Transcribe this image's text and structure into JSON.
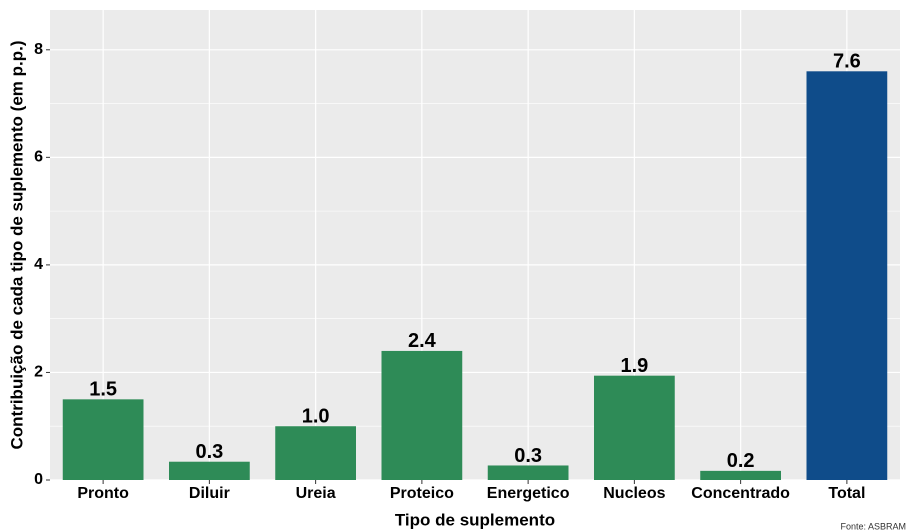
{
  "chart_data": {
    "type": "bar",
    "x_label": "Tipo de suplemento",
    "y_label": "Contribuição de cada tipo de suplemento (em p.p.)",
    "caption": "Fonte: ASBRAM",
    "categories": [
      "Pronto",
      "Diluir",
      "Ureia",
      "Proteico",
      "Energetico",
      "Nucleos",
      "Concentrado",
      "Total"
    ],
    "values": [
      1.5,
      0.34,
      1.0,
      2.4,
      0.27,
      1.94,
      0.17,
      7.6
    ],
    "value_labels": [
      "1.5",
      "0.3",
      "1.0",
      "2.4",
      "0.3",
      "1.9",
      "0.2",
      "7.6"
    ],
    "colors": [
      "#2e8b57",
      "#2e8b57",
      "#2e8b57",
      "#2e8b57",
      "#2e8b57",
      "#2e8b57",
      "#2e8b57",
      "#0f4c8a"
    ],
    "ylim": [
      0,
      8.74
    ],
    "yticks": [
      0,
      2,
      4,
      6,
      8
    ],
    "grid": true
  }
}
